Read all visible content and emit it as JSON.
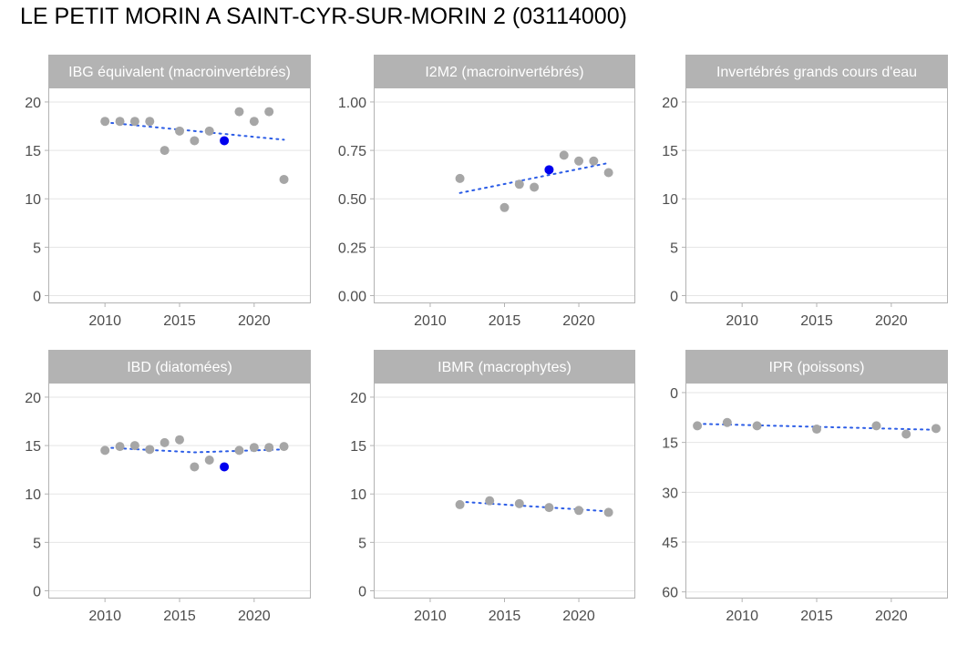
{
  "title": "LE PETIT MORIN A SAINT-CYR-SUR-MORIN 2 (03114000)",
  "colors": {
    "strip_bg": "#b3b3b3",
    "strip_text": "#ffffff",
    "point": "#a6a6a6",
    "highlight_point": "#0000ee",
    "trend": "#2b5ce6",
    "grid": "#e5e5e5",
    "frame": "#b3b3b3",
    "tick_text": "#4d4d4d"
  },
  "chart_data": [
    {
      "type": "scatter",
      "title": "IBG équivalent (macroinvertébrés)",
      "xlim": [
        2006.2,
        2023.8
      ],
      "ylim": [
        -0.8,
        21.5
      ],
      "x_ticks": [
        2010,
        2015,
        2020
      ],
      "y_ticks": [
        0,
        5,
        10,
        15,
        20
      ],
      "y_tick_labels": [
        "0",
        "5",
        "10",
        "15",
        "20"
      ],
      "y_reversed": false,
      "points": [
        [
          2010,
          18
        ],
        [
          2011,
          18
        ],
        [
          2012,
          18
        ],
        [
          2013,
          18
        ],
        [
          2014,
          15
        ],
        [
          2015,
          17
        ],
        [
          2016,
          16
        ],
        [
          2017,
          17
        ],
        [
          2019,
          19
        ],
        [
          2020,
          18
        ],
        [
          2021,
          19
        ],
        [
          2022,
          12
        ]
      ],
      "highlight": [
        [
          2018,
          16
        ]
      ],
      "trend": [
        [
          2010,
          17.9
        ],
        [
          2022,
          16.1
        ]
      ]
    },
    {
      "type": "scatter",
      "title": "I2M2 (macroinvertébrés)",
      "xlim": [
        2006.2,
        2023.8
      ],
      "ylim": [
        -0.04,
        1.075
      ],
      "x_ticks": [
        2010,
        2015,
        2020
      ],
      "y_ticks": [
        0,
        0.25,
        0.5,
        0.75,
        1
      ],
      "y_tick_labels": [
        "0.00",
        "0.25",
        "0.50",
        "0.75",
        "1.00"
      ],
      "y_reversed": false,
      "points": [
        [
          2012,
          0.605
        ],
        [
          2015,
          0.455
        ],
        [
          2016,
          0.575
        ],
        [
          2017,
          0.56
        ],
        [
          2019,
          0.725
        ],
        [
          2020,
          0.695
        ],
        [
          2021,
          0.695
        ],
        [
          2022,
          0.635
        ]
      ],
      "highlight": [
        [
          2018,
          0.65
        ]
      ],
      "trend": [
        [
          2012,
          0.53
        ],
        [
          2022,
          0.685
        ]
      ]
    },
    {
      "type": "scatter",
      "title": "Invertébrés grands cours d'eau",
      "xlim": [
        2006.2,
        2023.8
      ],
      "ylim": [
        -0.8,
        21.5
      ],
      "x_ticks": [
        2010,
        2015,
        2020
      ],
      "y_ticks": [
        0,
        5,
        10,
        15,
        20
      ],
      "y_tick_labels": [
        "0",
        "5",
        "10",
        "15",
        "20"
      ],
      "y_reversed": false,
      "points": [],
      "highlight": [],
      "trend": []
    },
    {
      "type": "scatter",
      "title": "IBD (diatomées)",
      "xlim": [
        2006.2,
        2023.8
      ],
      "ylim": [
        -0.8,
        21.5
      ],
      "x_ticks": [
        2010,
        2015,
        2020
      ],
      "y_ticks": [
        0,
        5,
        10,
        15,
        20
      ],
      "y_tick_labels": [
        "0",
        "5",
        "10",
        "15",
        "20"
      ],
      "y_reversed": false,
      "points": [
        [
          2010,
          14.5
        ],
        [
          2011,
          14.9
        ],
        [
          2012,
          15.0
        ],
        [
          2013,
          14.6
        ],
        [
          2014,
          15.3
        ],
        [
          2015,
          15.6
        ],
        [
          2016,
          12.8
        ],
        [
          2017,
          13.5
        ],
        [
          2019,
          14.5
        ],
        [
          2020,
          14.8
        ],
        [
          2021,
          14.8
        ],
        [
          2022,
          14.9
        ]
      ],
      "highlight": [
        [
          2018,
          12.8
        ]
      ],
      "trend": [
        [
          2010,
          14.8
        ],
        [
          2016,
          14.3
        ],
        [
          2022,
          14.6
        ]
      ]
    },
    {
      "type": "scatter",
      "title": "IBMR (macrophytes)",
      "xlim": [
        2006.2,
        2023.8
      ],
      "ylim": [
        -0.8,
        21.5
      ],
      "x_ticks": [
        2010,
        2015,
        2020
      ],
      "y_ticks": [
        0,
        5,
        10,
        15,
        20
      ],
      "y_tick_labels": [
        "0",
        "5",
        "10",
        "15",
        "20"
      ],
      "y_reversed": false,
      "points": [
        [
          2012,
          8.9
        ],
        [
          2014,
          9.3
        ],
        [
          2016,
          9.0
        ],
        [
          2018,
          8.6
        ],
        [
          2020,
          8.3
        ],
        [
          2022,
          8.1
        ]
      ],
      "highlight": [],
      "trend": [
        [
          2012,
          9.2
        ],
        [
          2022,
          8.2
        ]
      ]
    },
    {
      "type": "scatter",
      "title": "IPR (poissons)",
      "xlim": [
        2006.2,
        2023.8
      ],
      "ylim": [
        -3,
        62
      ],
      "x_ticks": [
        2010,
        2015,
        2020
      ],
      "y_ticks": [
        0,
        15,
        30,
        45,
        60
      ],
      "y_tick_labels": [
        "0",
        "15",
        "30",
        "45",
        "60"
      ],
      "y_reversed": true,
      "points": [
        [
          2007,
          10
        ],
        [
          2009,
          9
        ],
        [
          2011,
          10
        ],
        [
          2015,
          11
        ],
        [
          2019,
          10
        ],
        [
          2021,
          12.5
        ],
        [
          2023,
          10.8
        ]
      ],
      "highlight": [],
      "trend": [
        [
          2007,
          9.4
        ],
        [
          2023,
          11.2
        ]
      ]
    }
  ]
}
